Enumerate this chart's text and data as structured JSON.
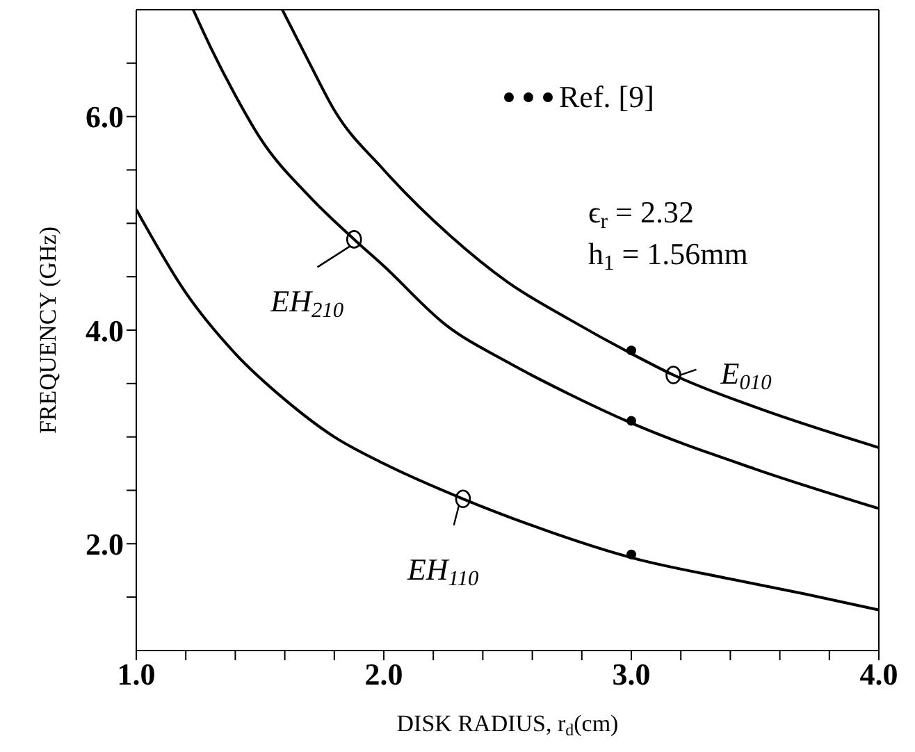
{
  "chart_data": {
    "type": "line",
    "xlabel": "DISK RADIUS, r$_{d}$(cm)",
    "ylabel": "FREQUENCY (GHz)",
    "xlim": [
      1,
      4
    ],
    "ylim": [
      1,
      7
    ],
    "xticks": [
      {
        "value": 1,
        "label": "1.0"
      },
      {
        "value": 1.2,
        "label": null
      },
      {
        "value": 1.4,
        "label": null
      },
      {
        "value": 1.6,
        "label": null
      },
      {
        "value": 1.8,
        "label": null
      },
      {
        "value": 2,
        "label": "2.0"
      },
      {
        "value": 2.2,
        "label": null
      },
      {
        "value": 2.4,
        "label": null
      },
      {
        "value": 2.6,
        "label": null
      },
      {
        "value": 2.8,
        "label": null
      },
      {
        "value": 3,
        "label": "3.0"
      },
      {
        "value": 3.2,
        "label": null
      },
      {
        "value": 3.4,
        "label": null
      },
      {
        "value": 3.6,
        "label": null
      },
      {
        "value": 3.8,
        "label": null
      },
      {
        "value": 4,
        "label": "4.0"
      }
    ],
    "yticks": [
      {
        "value": 1.5,
        "label": null
      },
      {
        "value": 2,
        "label": "2.0"
      },
      {
        "value": 2.5,
        "label": null
      },
      {
        "value": 3,
        "label": null
      },
      {
        "value": 3.5,
        "label": null
      },
      {
        "value": 4,
        "label": "4.0"
      },
      {
        "value": 4.5,
        "label": null
      },
      {
        "value": 5,
        "label": null
      },
      {
        "value": 5.5,
        "label": null
      },
      {
        "value": 6,
        "label": "6.0"
      },
      {
        "value": 6.5,
        "label": null
      }
    ],
    "grid": false,
    "legend": "top right",
    "marker": "none",
    "line_style": "solid",
    "series": [
      {
        "type": "line",
        "color": "#000000",
        "x": [
          1.0,
          1.2,
          1.4,
          1.6,
          1.8,
          2.0,
          2.32,
          2.6,
          3.0,
          3.4,
          3.7,
          4.0
        ],
        "values": [
          5.13,
          4.35,
          3.78,
          3.35,
          3.0,
          2.75,
          2.42,
          2.17,
          1.87,
          1.67,
          1.53,
          1.38
        ]
      },
      {
        "type": "line",
        "color": "#000000",
        "x": [
          1.23,
          1.3,
          1.4,
          1.5,
          1.7,
          1.88,
          2.0,
          2.25,
          2.5,
          2.75,
          3.0,
          3.5,
          4.0
        ],
        "values": [
          7.0,
          6.65,
          6.2,
          5.8,
          5.25,
          4.85,
          4.6,
          4.05,
          3.7,
          3.4,
          3.13,
          2.7,
          2.33
        ]
      },
      {
        "type": "line",
        "color": "#000000",
        "x": [
          1.59,
          1.7,
          1.8,
          2.0,
          2.27,
          2.5,
          2.75,
          3.0,
          3.17,
          3.5,
          4.0
        ],
        "values": [
          7.0,
          6.5,
          6.06,
          5.5,
          4.88,
          4.45,
          4.1,
          3.78,
          3.58,
          3.28,
          2.9
        ]
      },
      {
        "type": "scatter",
        "name": "Ref. [9]",
        "color": "#000000",
        "marker": "circle",
        "x": [
          3,
          3,
          3
        ],
        "values": [
          3.81,
          3.15,
          1.9
        ]
      }
    ],
    "annotations": [
      {
        "text": "EH$_{210}$",
        "x": 1.88,
        "y": 4.85
      },
      {
        "text": "EH$_{110}$",
        "x": 2.32,
        "y": 2.42
      },
      {
        "text": "E$_{010}$",
        "x": 3.17,
        "y": 3.58
      },
      "ϵ$_{r}$ = 2.32",
      "h$_{1}$ = 1.56mm"
    ]
  }
}
